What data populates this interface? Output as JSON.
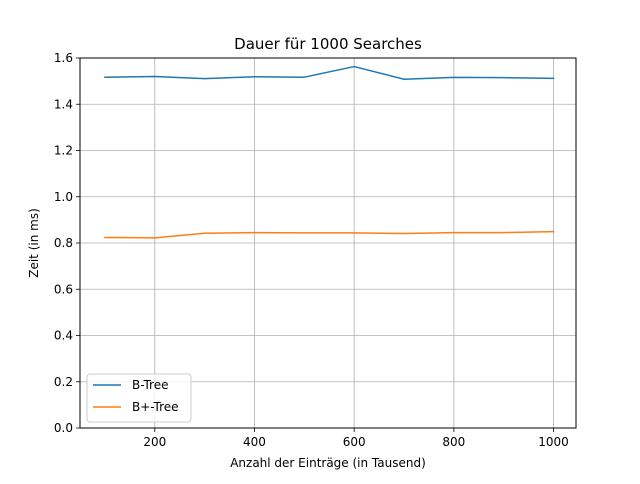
{
  "chart_data": {
    "type": "line",
    "title": "Dauer für 1000 Searches",
    "xlabel": "Anzahl der Einträge (in Tausend)",
    "ylabel": "Zeit (in ms)",
    "xlim": [
      50,
      1045
    ],
    "ylim": [
      0,
      1.6
    ],
    "x_ticks": [
      200,
      400,
      600,
      800,
      1000
    ],
    "y_ticks": [
      0.0,
      0.2,
      0.4,
      0.6,
      0.8,
      1.0,
      1.2,
      1.4,
      1.6
    ],
    "x_tick_labels": [
      "200",
      "400",
      "600",
      "800",
      "1000"
    ],
    "y_tick_labels": [
      "0.0",
      "0.2",
      "0.4",
      "0.6",
      "0.8",
      "1.0",
      "1.2",
      "1.4",
      "1.6"
    ],
    "grid": true,
    "legend_position": "lower-left",
    "x": [
      100,
      200,
      300,
      400,
      500,
      600,
      700,
      800,
      900,
      1000
    ],
    "series": [
      {
        "name": "B-Tree",
        "color": "#1f77b4",
        "values": [
          1.517,
          1.52,
          1.511,
          1.519,
          1.517,
          1.563,
          1.508,
          1.516,
          1.515,
          1.512
        ]
      },
      {
        "name": "B+-Tree",
        "color": "#ff7f0e",
        "values": [
          0.824,
          0.822,
          0.842,
          0.845,
          0.844,
          0.844,
          0.841,
          0.845,
          0.845,
          0.849
        ]
      }
    ]
  }
}
